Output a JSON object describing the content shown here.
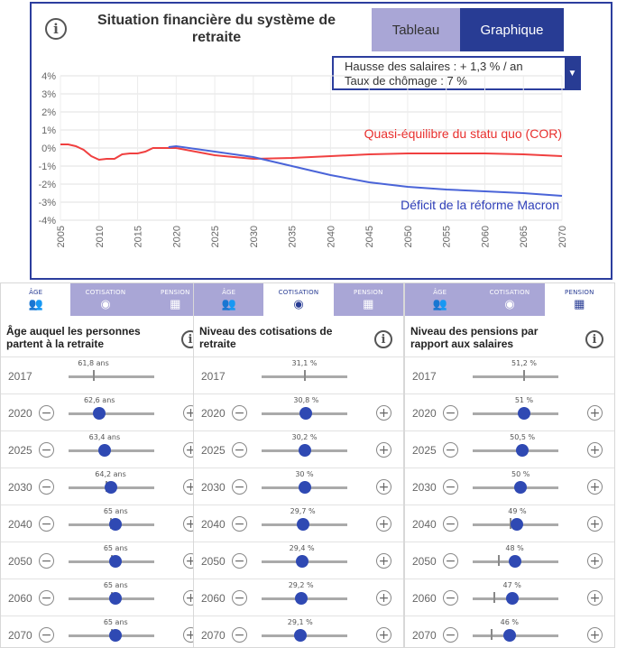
{
  "top": {
    "title": "Situation financière du système de retraite",
    "info_icon": "info-icon",
    "buttons": {
      "tableau": "Tableau",
      "graphique": "Graphique"
    },
    "hypotheses": {
      "line1": "Hausse des salaires : + 1,3 % / an",
      "line2": "Taux de chômage : 7 %"
    }
  },
  "colors": {
    "accent": "#283c94",
    "tab_inactive": "#a9a6d6",
    "red_series": "#f04040",
    "blue_series": "#4a64d8"
  },
  "chart_data": {
    "type": "line",
    "x_ticks": [
      "2005",
      "2010",
      "2015",
      "2020",
      "2025",
      "2030",
      "2035",
      "2040",
      "2045",
      "2050",
      "2055",
      "2060",
      "2065",
      "2070"
    ],
    "y_ticks": [
      "4%",
      "3%",
      "2%",
      "1%",
      "0%",
      "-1%",
      "-2%",
      "-3%",
      "-4%"
    ],
    "ylim": [
      -4,
      4
    ],
    "xlim": [
      2005,
      2070
    ],
    "grid": true,
    "annotations": [
      "Quasi-équilibre du statu quo (COR)",
      "Déficit de la réforme Macron"
    ],
    "series": [
      {
        "name": "Quasi-équilibre du statu quo (COR)",
        "color": "#f04040",
        "points": [
          [
            2005,
            0.2
          ],
          [
            2006,
            0.2
          ],
          [
            2007,
            0.1
          ],
          [
            2008,
            -0.1
          ],
          [
            2009,
            -0.45
          ],
          [
            2010,
            -0.65
          ],
          [
            2011,
            -0.6
          ],
          [
            2012,
            -0.6
          ],
          [
            2013,
            -0.35
          ],
          [
            2014,
            -0.3
          ],
          [
            2015,
            -0.3
          ],
          [
            2016,
            -0.2
          ],
          [
            2017,
            0.0
          ],
          [
            2018,
            0.0
          ],
          [
            2020,
            0.0
          ],
          [
            2025,
            -0.4
          ],
          [
            2030,
            -0.6
          ],
          [
            2035,
            -0.55
          ],
          [
            2040,
            -0.45
          ],
          [
            2045,
            -0.35
          ],
          [
            2050,
            -0.3
          ],
          [
            2055,
            -0.3
          ],
          [
            2060,
            -0.3
          ],
          [
            2065,
            -0.35
          ],
          [
            2070,
            -0.45
          ]
        ]
      },
      {
        "name": "Déficit de la réforme Macron",
        "color": "#4a64d8",
        "points": [
          [
            2019,
            0.05
          ],
          [
            2020,
            0.1
          ],
          [
            2025,
            -0.2
          ],
          [
            2030,
            -0.5
          ],
          [
            2035,
            -1.0
          ],
          [
            2040,
            -1.5
          ],
          [
            2045,
            -1.9
          ],
          [
            2050,
            -2.15
          ],
          [
            2055,
            -2.3
          ],
          [
            2060,
            -2.4
          ],
          [
            2065,
            -2.5
          ],
          [
            2070,
            -2.65
          ]
        ]
      }
    ]
  },
  "panels": [
    {
      "tabs": [
        {
          "label": "ÂGE",
          "icon": "people-icon",
          "active": true
        },
        {
          "label": "COTISATION",
          "icon": "coins-icon",
          "active": false
        },
        {
          "label": "PENSION",
          "icon": "calculator-icon",
          "active": false
        }
      ],
      "title": "Âge auquel les personnes partent à la retraite",
      "rows": [
        {
          "year": "2017",
          "value": "61,8 ans",
          "level": 0.29,
          "ref": 0.29,
          "editable": false
        },
        {
          "year": "2020",
          "value": "62,6 ans",
          "level": 0.36,
          "ref": 0.36,
          "editable": true
        },
        {
          "year": "2025",
          "value": "63,4 ans",
          "level": 0.42,
          "ref": 0.42,
          "editable": true
        },
        {
          "year": "2030",
          "value": "64,2 ans",
          "level": 0.49,
          "ref": 0.44,
          "editable": true
        },
        {
          "year": "2040",
          "value": "65 ans",
          "level": 0.55,
          "ref": 0.49,
          "editable": true
        },
        {
          "year": "2050",
          "value": "65 ans",
          "level": 0.55,
          "ref": 0.51,
          "editable": true
        },
        {
          "year": "2060",
          "value": "65 ans",
          "level": 0.55,
          "ref": 0.51,
          "editable": true
        },
        {
          "year": "2070",
          "value": "65 ans",
          "level": 0.55,
          "ref": 0.51,
          "editable": true
        }
      ]
    },
    {
      "tabs": [
        {
          "label": "ÂGE",
          "icon": "people-icon",
          "active": false
        },
        {
          "label": "COTISATION",
          "icon": "coins-icon",
          "active": true
        },
        {
          "label": "PENSION",
          "icon": "calculator-icon",
          "active": false
        }
      ],
      "title": "Niveau des cotisations de retraite",
      "rows": [
        {
          "year": "2017",
          "value": "31,1 %",
          "level": 0.5,
          "ref": 0.5,
          "editable": false
        },
        {
          "year": "2020",
          "value": "30,8 %",
          "level": 0.52,
          "ref": 0.52,
          "editable": true
        },
        {
          "year": "2025",
          "value": "30,2 %",
          "level": 0.5,
          "ref": 0.5,
          "editable": true
        },
        {
          "year": "2030",
          "value": "30 %",
          "level": 0.5,
          "ref": 0.5,
          "editable": true
        },
        {
          "year": "2040",
          "value": "29,7 %",
          "level": 0.48,
          "ref": 0.48,
          "editable": true
        },
        {
          "year": "2050",
          "value": "29,4 %",
          "level": 0.47,
          "ref": 0.47,
          "editable": true
        },
        {
          "year": "2060",
          "value": "29,2 %",
          "level": 0.46,
          "ref": 0.46,
          "editable": true
        },
        {
          "year": "2070",
          "value": "29,1 %",
          "level": 0.45,
          "ref": 0.45,
          "editable": true
        }
      ]
    },
    {
      "tabs": [
        {
          "label": "ÂGE",
          "icon": "people-icon",
          "active": false
        },
        {
          "label": "COTISATION",
          "icon": "coins-icon",
          "active": false
        },
        {
          "label": "PENSION",
          "icon": "calculator-icon",
          "active": true
        }
      ],
      "title": "Niveau des pensions par rapport aux salaires",
      "rows": [
        {
          "year": "2017",
          "value": "51,2 %",
          "level": 0.6,
          "ref": 0.6,
          "editable": false
        },
        {
          "year": "2020",
          "value": "51 %",
          "level": 0.6,
          "ref": 0.6,
          "editable": true
        },
        {
          "year": "2025",
          "value": "50,5 %",
          "level": 0.58,
          "ref": 0.58,
          "editable": true
        },
        {
          "year": "2030",
          "value": "50 %",
          "level": 0.56,
          "ref": 0.56,
          "editable": true
        },
        {
          "year": "2040",
          "value": "49 %",
          "level": 0.52,
          "ref": 0.44,
          "editable": true
        },
        {
          "year": "2050",
          "value": "48 %",
          "level": 0.49,
          "ref": 0.31,
          "editable": true
        },
        {
          "year": "2060",
          "value": "47 %",
          "level": 0.46,
          "ref": 0.25,
          "editable": true
        },
        {
          "year": "2070",
          "value": "46 %",
          "level": 0.43,
          "ref": 0.22,
          "editable": true
        }
      ]
    }
  ]
}
